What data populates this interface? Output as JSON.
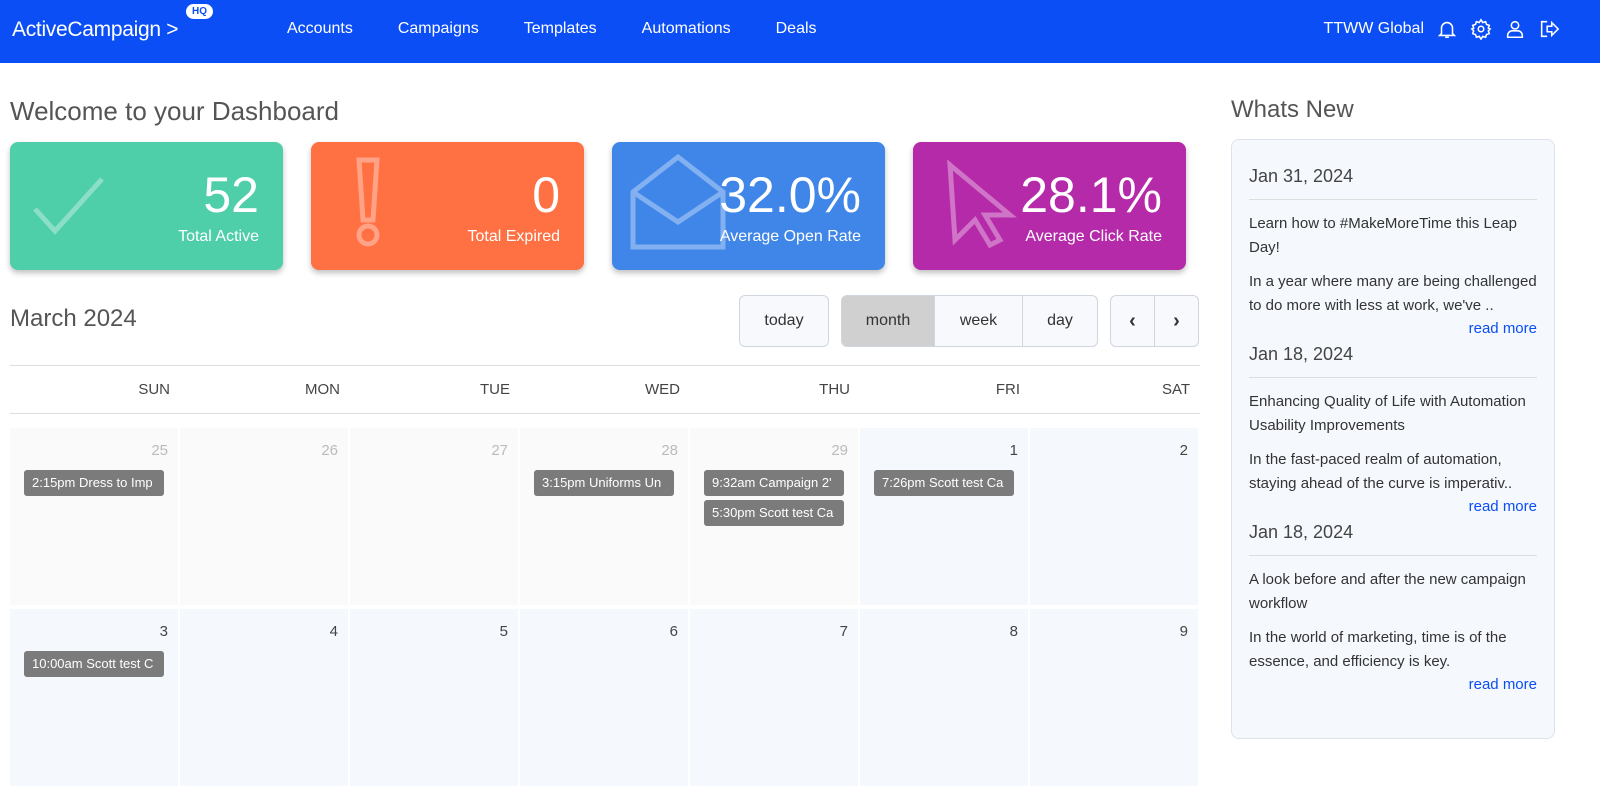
{
  "nav": {
    "logo": "ActiveCampaign >",
    "badge": "HQ",
    "links": [
      "Accounts",
      "Campaigns",
      "Templates",
      "Automations",
      "Deals"
    ],
    "account": "TTWW Global",
    "icons": [
      "bell-icon",
      "gear-icon",
      "user-icon",
      "logout-icon"
    ]
  },
  "page_title": "Welcome to your Dashboard",
  "cards": [
    {
      "value": "52",
      "label": "Total Active",
      "color": "#4ecfa9",
      "icon": "check-icon"
    },
    {
      "value": "0",
      "label": "Total Expired",
      "color": "#ff7043",
      "icon": "exclamation-icon"
    },
    {
      "value": "32.0%",
      "label": "Average Open Rate",
      "color": "#3f86e8",
      "icon": "envelope-open-icon"
    },
    {
      "value": "28.1%",
      "label": "Average Click Rate",
      "color": "#b52aa8",
      "icon": "cursor-icon"
    }
  ],
  "calendar": {
    "title": "March 2024",
    "today": "today",
    "views": [
      "month",
      "week",
      "day"
    ],
    "active_view": "month",
    "days": [
      "SUN",
      "MON",
      "TUE",
      "WED",
      "THU",
      "FRI",
      "SAT"
    ],
    "weeks": [
      [
        {
          "n": "25",
          "ev": [
            "2:15pm Dress to Imp"
          ]
        },
        {
          "n": "26",
          "ev": []
        },
        {
          "n": "27",
          "ev": []
        },
        {
          "n": "28",
          "ev": [
            "3:15pm Uniforms Un"
          ]
        },
        {
          "n": "29",
          "ev": [
            "9:32am Campaign 2'",
            "5:30pm Scott test Ca"
          ]
        },
        {
          "n": "1",
          "cur": true,
          "ev": [
            "7:26pm Scott test Ca"
          ]
        },
        {
          "n": "2",
          "cur": true,
          "ev": []
        }
      ],
      [
        {
          "n": "3",
          "cur": true,
          "ev": [
            "10:00am Scott test C"
          ]
        },
        {
          "n": "4",
          "cur": true,
          "ev": []
        },
        {
          "n": "5",
          "cur": true,
          "ev": []
        },
        {
          "n": "6",
          "cur": true,
          "ev": []
        },
        {
          "n": "7",
          "cur": true,
          "ev": []
        },
        {
          "n": "8",
          "cur": true,
          "ev": []
        },
        {
          "n": "9",
          "cur": true,
          "ev": []
        }
      ]
    ]
  },
  "whats_new": {
    "title": "Whats New",
    "read_more": "read more",
    "items": [
      {
        "date": "Jan 31, 2024",
        "title": "Learn how to #MakeMoreTime this Leap Day!",
        "body": "In a year where many are being challenged to do more with less at work, we've .."
      },
      {
        "date": "Jan 18, 2024",
        "title": "Enhancing Quality of Life with Automation Usability Improvements",
        "body": "In the fast-paced realm of automation, staying ahead of the curve is imperativ.."
      },
      {
        "date": "Jan 18, 2024",
        "title": "A look before and after the new campaign workflow",
        "body": "In the world of marketing, time is of the essence, and efficiency is key."
      }
    ]
  }
}
